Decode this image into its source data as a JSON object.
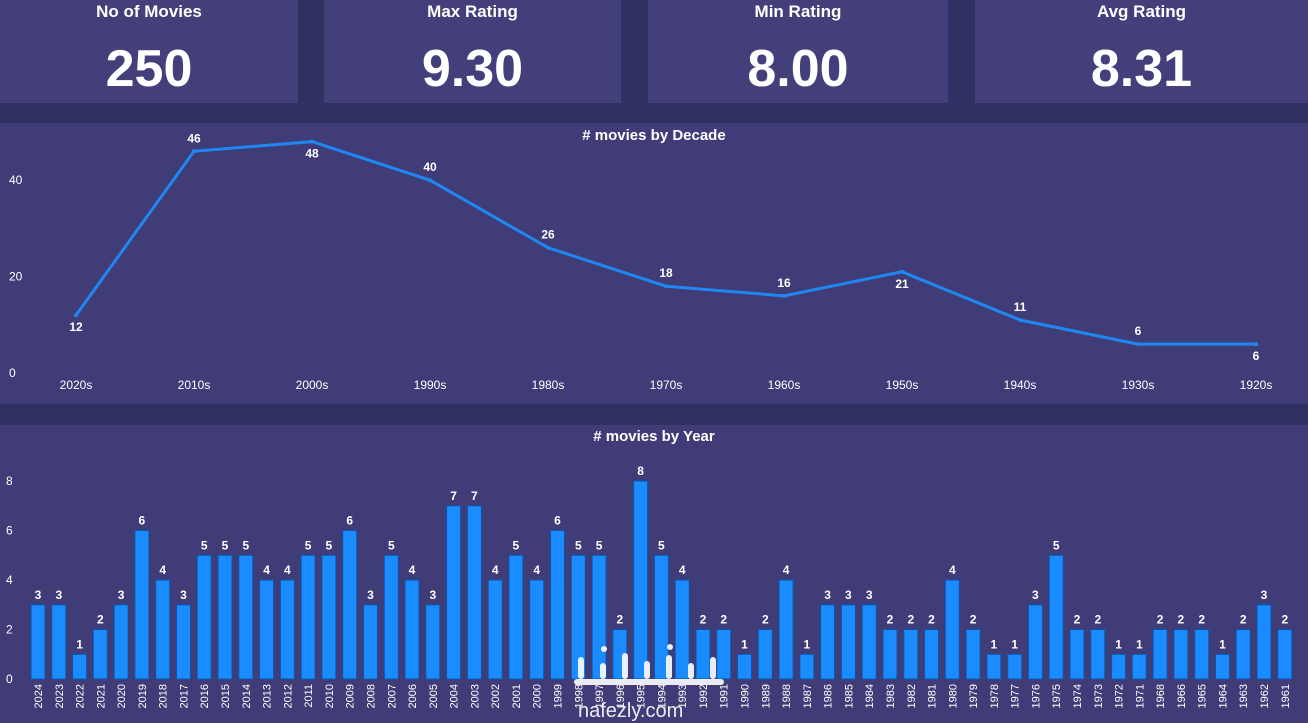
{
  "kpis": [
    {
      "label": "No of Movies",
      "value": "250"
    },
    {
      "label": "Max Rating",
      "value": "9.30"
    },
    {
      "label": "Min Rating",
      "value": "8.00"
    },
    {
      "label": "Avg Rating",
      "value": "8.31"
    }
  ],
  "colors": {
    "background": "#303163",
    "panel": "#3f3c78",
    "kpi_card": "#423f7a",
    "line": "#1e88f0",
    "bar": "#1a8cff",
    "bar_edge": "#0b55a8",
    "text": "#ffffff"
  },
  "watermark": "nafezly.com",
  "chart_data": [
    {
      "type": "line",
      "title": "# movies by Decade",
      "categories": [
        "2020s",
        "2010s",
        "2000s",
        "1990s",
        "1980s",
        "1970s",
        "1960s",
        "1950s",
        "1940s",
        "1930s",
        "1920s"
      ],
      "values": [
        12,
        46,
        48,
        40,
        26,
        18,
        16,
        21,
        11,
        6,
        6
      ],
      "yticks": [
        0,
        20,
        40
      ],
      "ylim": [
        0,
        50
      ],
      "grid": false,
      "xlabel": "",
      "ylabel": ""
    },
    {
      "type": "bar",
      "title": "# movies by Year",
      "categories": [
        "2024",
        "2023",
        "2022",
        "2021",
        "2020",
        "2019",
        "2018",
        "2017",
        "2016",
        "2015",
        "2014",
        "2013",
        "2012",
        "2011",
        "2010",
        "2009",
        "2008",
        "2007",
        "2006",
        "2005",
        "2004",
        "2003",
        "2002",
        "2001",
        "2000",
        "1999",
        "1998",
        "1997",
        "1996",
        "1995",
        "1994",
        "1993",
        "1992",
        "1991",
        "1990",
        "1989",
        "1988",
        "1987",
        "1986",
        "1985",
        "1984",
        "1983",
        "1982",
        "1981",
        "1980",
        "1979",
        "1978",
        "1977",
        "1976",
        "1975",
        "1974",
        "1973",
        "1972",
        "1971",
        "1968",
        "1966",
        "1965",
        "1964",
        "1963",
        "1962",
        "1961"
      ],
      "values": [
        3,
        3,
        1,
        2,
        3,
        6,
        4,
        3,
        5,
        5,
        5,
        4,
        4,
        5,
        5,
        6,
        3,
        5,
        4,
        3,
        7,
        7,
        4,
        5,
        4,
        6,
        5,
        5,
        2,
        8,
        5,
        4,
        2,
        2,
        1,
        2,
        4,
        1,
        3,
        3,
        3,
        2,
        2,
        2,
        4,
        2,
        1,
        1,
        3,
        5,
        2,
        2,
        1,
        1,
        2,
        2,
        2,
        1,
        2,
        3,
        2
      ],
      "yticks": [
        0,
        2,
        4,
        6,
        8
      ],
      "ylim": [
        0,
        8
      ],
      "grid": false,
      "xlabel": "",
      "ylabel": ""
    }
  ]
}
